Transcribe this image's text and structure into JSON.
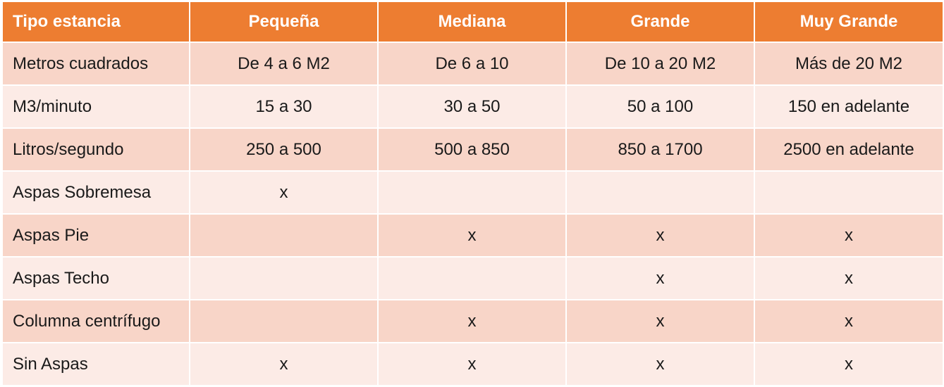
{
  "table": {
    "headers": [
      "Tipo estancia",
      "Pequeña",
      "Mediana",
      "Grande",
      "Muy Grande"
    ],
    "rows": [
      [
        "Metros cuadrados",
        "De 4 a 6 M2",
        "De 6 a 10",
        "De 10 a 20 M2",
        "Más de 20 M2"
      ],
      [
        "M3/minuto",
        "15 a 30",
        "30 a 50",
        "50 a 100",
        "150 en adelante"
      ],
      [
        "Litros/segundo",
        "250 a 500",
        "500 a 850",
        "850 a 1700",
        "2500 en adelante"
      ],
      [
        "Aspas Sobremesa",
        "x",
        "",
        "",
        ""
      ],
      [
        "Aspas Pie",
        "",
        "x",
        "x",
        "x"
      ],
      [
        "Aspas Techo",
        "",
        "",
        "x",
        "x"
      ],
      [
        "Columna centrífugo",
        "",
        "x",
        "x",
        "x"
      ],
      [
        "Sin Aspas",
        "x",
        "x",
        "x",
        "x"
      ]
    ]
  },
  "colors": {
    "header_bg": "#ed7d31",
    "header_text": "#ffffff",
    "row_odd_bg": "#f8d5c8",
    "row_even_bg": "#fcebe6"
  }
}
